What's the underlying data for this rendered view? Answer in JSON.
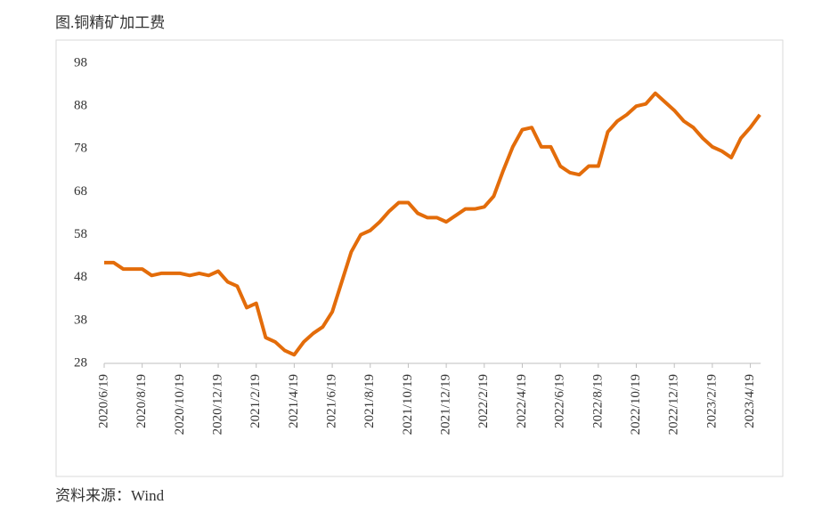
{
  "chart_data": {
    "type": "line",
    "title": "图.铜精矿加工费",
    "source": "资料来源：Wind",
    "categories": [
      "2020/6/19",
      null,
      null,
      null,
      "2020/8/19",
      null,
      null,
      null,
      "2020/10/19",
      null,
      null,
      null,
      "2020/12/19",
      null,
      null,
      null,
      "2021/2/19",
      null,
      null,
      null,
      "2021/4/19",
      null,
      null,
      null,
      "2021/6/19",
      null,
      null,
      null,
      "2021/8/19",
      null,
      null,
      null,
      "2021/10/19",
      null,
      null,
      null,
      "2021/12/19",
      null,
      null,
      null,
      "2022/2/19",
      null,
      null,
      null,
      "2022/4/19",
      null,
      null,
      null,
      "2022/6/19",
      null,
      null,
      null,
      "2022/8/19",
      null,
      null,
      null,
      "2022/10/19",
      null,
      null,
      null,
      "2022/12/19",
      null,
      null,
      null,
      "2023/2/19",
      null,
      null,
      null,
      "2023/4/19",
      null
    ],
    "series": [
      {
        "color": "#e36c0a",
        "values": [
          51.5,
          51.5,
          50,
          50,
          50,
          48.5,
          49,
          49,
          49,
          48.5,
          49,
          48.5,
          49.5,
          47,
          46,
          41,
          42,
          34,
          33,
          31,
          30,
          33,
          35,
          36.5,
          40,
          47,
          54,
          58,
          59,
          61,
          63.5,
          65.5,
          65.5,
          63,
          62,
          62,
          61,
          62.5,
          64,
          64,
          64.5,
          67,
          73,
          78.5,
          82.5,
          83,
          78.5,
          78.5,
          74,
          72.5,
          72,
          74,
          74,
          82,
          84.5,
          86,
          88,
          88.5,
          91,
          89,
          87,
          84.5,
          83,
          80.5,
          78.5,
          77.5,
          76,
          80.5,
          83,
          86
        ]
      }
    ],
    "ylim": [
      28,
      98
    ],
    "yticks": [
      28,
      38,
      48,
      58,
      68,
      78,
      88,
      98
    ]
  }
}
